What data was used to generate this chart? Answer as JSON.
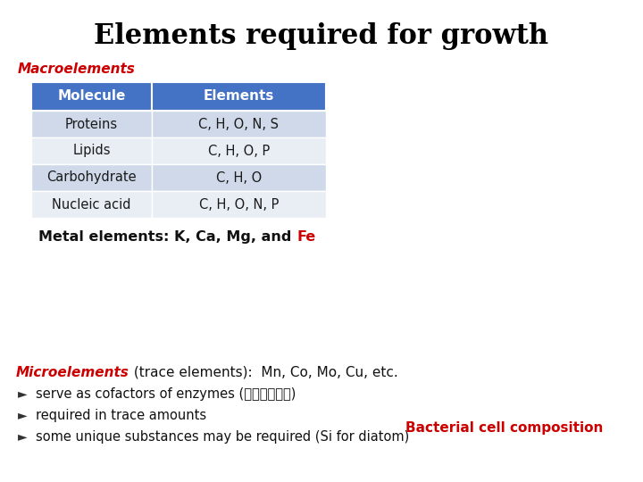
{
  "title": "Elements required for growth",
  "title_fontsize": 22,
  "title_color": "#000000",
  "background_color": "#ffffff",
  "macroelements_label": "Macroelements",
  "macroelements_color": "#cc0000",
  "table_headers": [
    "Molecule",
    "Elements"
  ],
  "table_header_bg": "#4472c4",
  "table_header_color": "#ffffff",
  "table_rows": [
    [
      "Proteins",
      "C, H, O, N, S"
    ],
    [
      "Lipids",
      "C, H, O, P"
    ],
    [
      "Carbohydrate",
      "C, H, O"
    ],
    [
      "Nucleic acid",
      "C, H, O, N, P"
    ]
  ],
  "table_row_bg_odd": "#cfd9ea",
  "table_row_bg_even": "#e9eef5",
  "metal_elements_text_bold": "Metal elements: K, Ca, Mg, and ",
  "metal_elements_fe": "Fe",
  "metal_elements_fe_color": "#cc0000",
  "microelements_italic_bold": "Microelements",
  "microelements_color": "#cc0000",
  "microelements_rest": " (trace elements):  Mn, Co, Mo, Cu, etc.",
  "bullet_points": [
    "serve as cofactors of enzymes (酶的辅助因子)",
    "required in trace amounts",
    "some unique substances may be required (Si for diatom)"
  ],
  "bacterial_label": "Bacterial cell composition",
  "bacterial_label_color": "#cc0000"
}
